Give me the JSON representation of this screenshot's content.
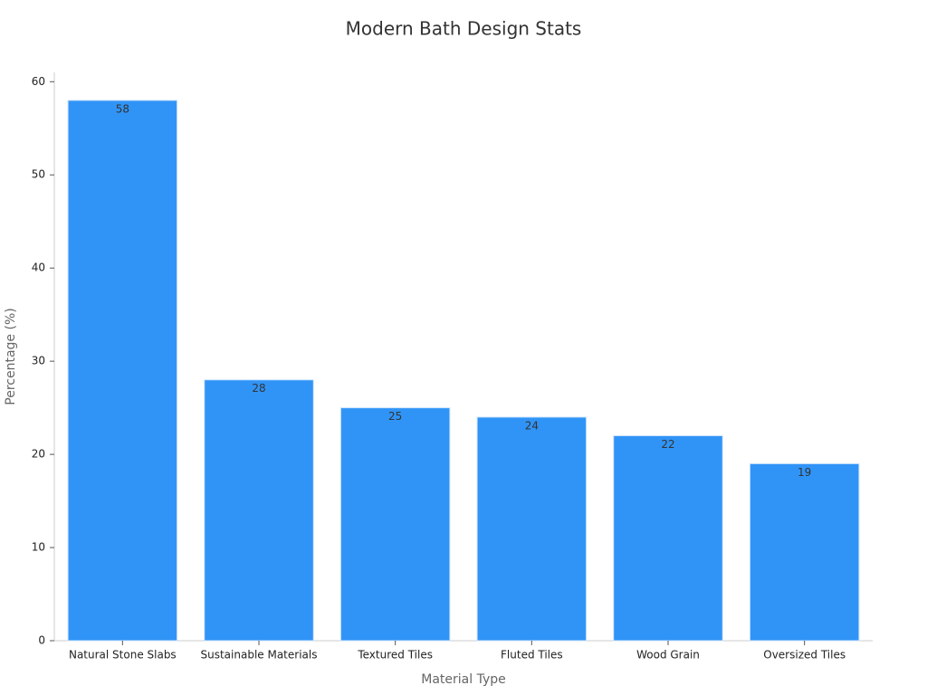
{
  "chart_data": {
    "type": "bar",
    "title": "Modern Bath Design Stats",
    "x_label": "Material Type",
    "y_label": "Percentage (%)",
    "categories": [
      "Natural Stone Slabs",
      "Sustainable Materials",
      "Textured Tiles",
      "Fluted Tiles",
      "Wood Grain",
      "Oversized Tiles"
    ],
    "values": [
      58,
      28,
      25,
      24,
      22,
      19
    ],
    "color": "#3094f7",
    "ylim": [
      0,
      61
    ],
    "yticks": [
      0,
      10,
      20,
      30,
      40,
      50,
      60
    ],
    "grid": false
  }
}
